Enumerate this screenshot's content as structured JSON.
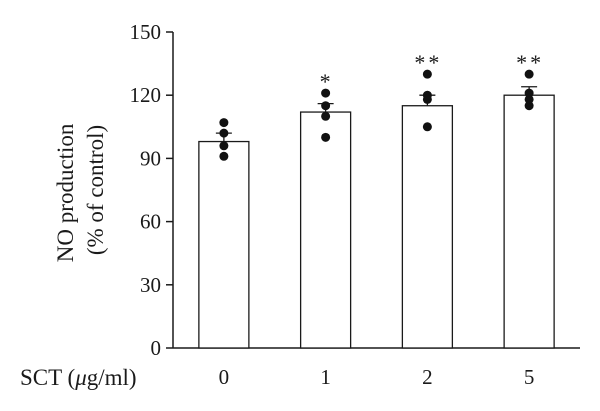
{
  "chart_data": {
    "type": "bar",
    "title": "",
    "ylabel_lines": [
      "NO production",
      "(% of control)"
    ],
    "xlabel_prefix": "SCT (",
    "xlabel_mu": "μ",
    "xlabel_suffix": "g/ml)",
    "ylim": [
      0,
      150
    ],
    "yticks": [
      0,
      30,
      60,
      90,
      120,
      150
    ],
    "categories": [
      "0",
      "1",
      "2",
      "5"
    ],
    "values": [
      98,
      112,
      115,
      120
    ],
    "errors": [
      4,
      4,
      5,
      4
    ],
    "points": [
      [
        91,
        96,
        102,
        107
      ],
      [
        100,
        110,
        115,
        121
      ],
      [
        105,
        118,
        120,
        130
      ],
      [
        115,
        118,
        121,
        130
      ]
    ],
    "significance": [
      "",
      "*",
      "**",
      "**"
    ],
    "grid": false,
    "legend": "none",
    "colors": {
      "bar_fill": "#ffffff",
      "bar_stroke": "#1a1a1a",
      "point": "#111111",
      "axis": "#1a1a1a"
    }
  }
}
